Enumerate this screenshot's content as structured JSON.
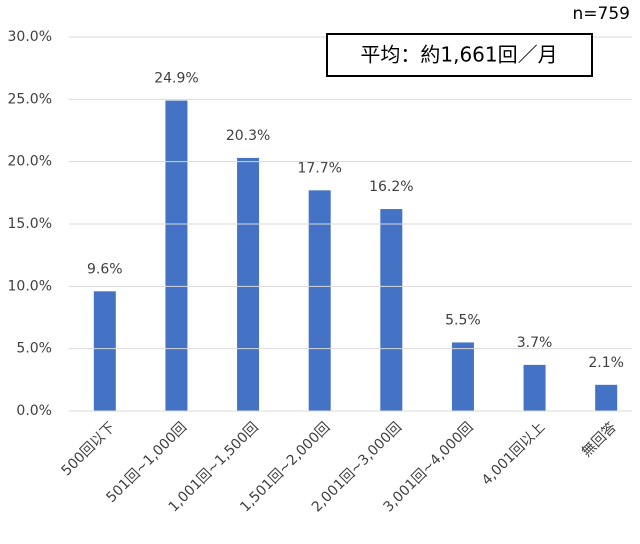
{
  "chart_data": {
    "type": "bar",
    "annotations": [
      "n=759",
      "平均：約1,661回／月"
    ],
    "categories": [
      "500回以下",
      "501回~1,000回",
      "1,001回~1,500回",
      "1,501回~2,000回",
      "2,001回~3,000回",
      "3,001回~4,000回",
      "4,001回以上",
      "無回答"
    ],
    "values": [
      9.6,
      24.9,
      20.3,
      17.7,
      16.2,
      5.5,
      3.7,
      2.1
    ],
    "value_labels": [
      "9.6%",
      "24.9%",
      "20.3%",
      "17.7%",
      "16.2%",
      "5.5%",
      "3.7%",
      "2.1%"
    ],
    "color": "#4472c4",
    "ylim": [
      0,
      30
    ],
    "yticks": [
      {
        "value": 0,
        "label": "0.0%"
      },
      {
        "value": 5,
        "label": "5.0%"
      },
      {
        "value": 10,
        "label": "10.0%"
      },
      {
        "value": 15,
        "label": "15.0%"
      },
      {
        "value": 20,
        "label": "20.0%"
      },
      {
        "value": 25,
        "label": "25.0%"
      },
      {
        "value": 30,
        "label": "30.0%"
      }
    ],
    "grid": true
  }
}
